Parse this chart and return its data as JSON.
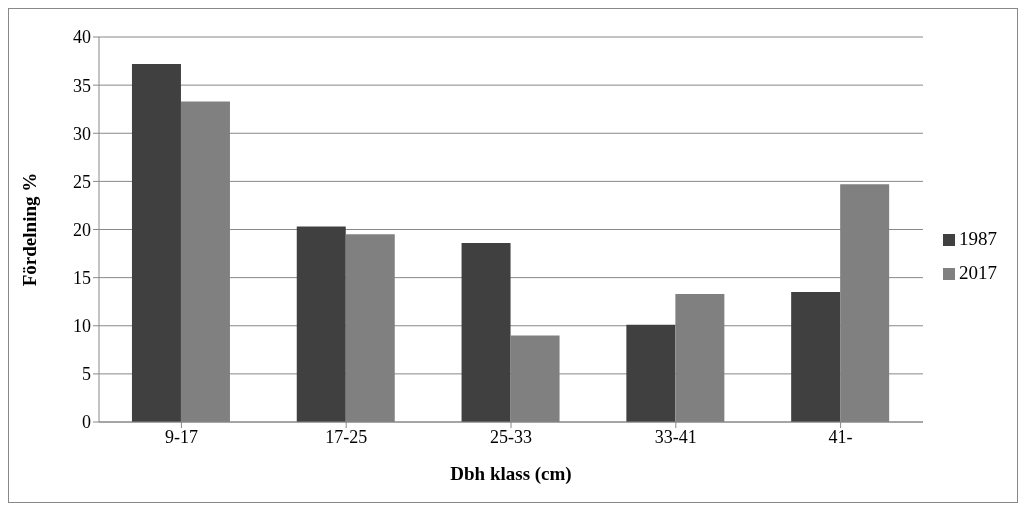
{
  "chart_data": {
    "type": "bar",
    "xlabel": "Dbh klass (cm)",
    "ylabel": "Fördelning %",
    "categories": [
      "9-17",
      "17-25",
      "25-33",
      "33-41",
      "41-"
    ],
    "series": [
      {
        "name": "1987",
        "color": "#404040",
        "values": [
          37.2,
          20.3,
          18.6,
          10.1,
          13.5
        ]
      },
      {
        "name": "2017",
        "color": "#808080",
        "values": [
          33.3,
          19.5,
          9.0,
          13.3,
          24.7
        ]
      }
    ],
    "ylim": [
      0,
      40
    ],
    "yticks": [
      0,
      5,
      10,
      15,
      20,
      25,
      30,
      35,
      40
    ],
    "grid": "y",
    "legend": "right"
  }
}
